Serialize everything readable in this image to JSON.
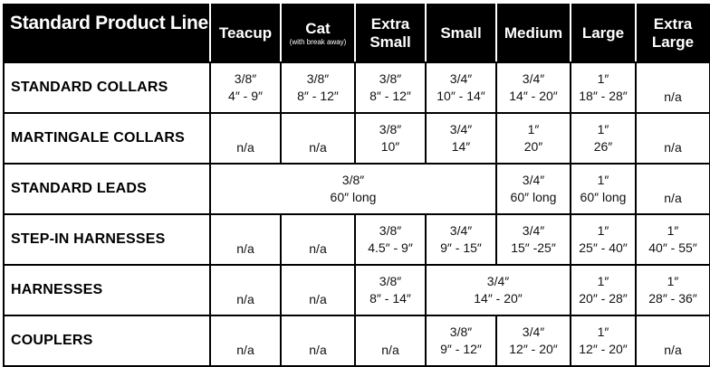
{
  "table": {
    "title": "Standard Product Line",
    "columns": [
      {
        "key": "teacup",
        "label": "Teacup",
        "note": ""
      },
      {
        "key": "cat",
        "label": "Cat",
        "note": "(with break away)"
      },
      {
        "key": "extra_small",
        "label": "Extra\nSmall",
        "note": ""
      },
      {
        "key": "small",
        "label": "Small",
        "note": ""
      },
      {
        "key": "medium",
        "label": "Medium",
        "note": ""
      },
      {
        "key": "large",
        "label": "Large",
        "note": ""
      },
      {
        "key": "extra_large",
        "label": "Extra\nLarge",
        "note": ""
      }
    ],
    "rows": [
      {
        "label": "STANDARD COLLARS",
        "cells": [
          {
            "lines": [
              "3/8″",
              "4″ - 9″"
            ],
            "span": 1
          },
          {
            "lines": [
              "3/8″",
              "8″ - 12″"
            ],
            "span": 1
          },
          {
            "lines": [
              "3/8″",
              "8″ - 12″"
            ],
            "span": 1
          },
          {
            "lines": [
              "3/4″",
              "10″ - 14″"
            ],
            "span": 1
          },
          {
            "lines": [
              "3/4″",
              "14″ - 20″"
            ],
            "span": 1
          },
          {
            "lines": [
              "1″",
              "18″ - 28″"
            ],
            "span": 1
          },
          {
            "lines": [
              "n/a"
            ],
            "span": 1,
            "na": true
          }
        ]
      },
      {
        "label": "MARTINGALE COLLARS",
        "cells": [
          {
            "lines": [
              "n/a"
            ],
            "span": 1,
            "na": true
          },
          {
            "lines": [
              "n/a"
            ],
            "span": 1,
            "na": true
          },
          {
            "lines": [
              "3/8″",
              "10″"
            ],
            "span": 1
          },
          {
            "lines": [
              "3/4″",
              "14″"
            ],
            "span": 1
          },
          {
            "lines": [
              "1″",
              "20″"
            ],
            "span": 1
          },
          {
            "lines": [
              "1″",
              "26″"
            ],
            "span": 1
          },
          {
            "lines": [
              "n/a"
            ],
            "span": 1,
            "na": true
          }
        ]
      },
      {
        "label": "STANDARD LEADS",
        "cells": [
          {
            "lines": [
              "3/8″",
              "60″ long"
            ],
            "span": 4
          },
          {
            "lines": [
              "3/4″",
              "60″ long"
            ],
            "span": 1
          },
          {
            "lines": [
              "1″",
              "60″ long"
            ],
            "span": 1
          },
          {
            "lines": [
              "n/a"
            ],
            "span": 1,
            "na": true
          }
        ]
      },
      {
        "label": "STEP-IN HARNESSES",
        "cells": [
          {
            "lines": [
              "n/a"
            ],
            "span": 1,
            "na": true
          },
          {
            "lines": [
              "n/a"
            ],
            "span": 1,
            "na": true
          },
          {
            "lines": [
              "3/8″",
              "4.5″ - 9″"
            ],
            "span": 1
          },
          {
            "lines": [
              "3/4″",
              "9″ - 15″"
            ],
            "span": 1
          },
          {
            "lines": [
              "3/4″",
              "15″ -25″"
            ],
            "span": 1
          },
          {
            "lines": [
              "1″",
              "25″ - 40″"
            ],
            "span": 1
          },
          {
            "lines": [
              "1″",
              "40″ - 55″"
            ],
            "span": 1
          }
        ]
      },
      {
        "label": "HARNESSES",
        "cells": [
          {
            "lines": [
              "n/a"
            ],
            "span": 1,
            "na": true
          },
          {
            "lines": [
              "n/a"
            ],
            "span": 1,
            "na": true
          },
          {
            "lines": [
              "3/8″",
              "8″ - 14″"
            ],
            "span": 1
          },
          {
            "lines": [
              "3/4″",
              "14″ - 20″"
            ],
            "span": 2
          },
          {
            "lines": [
              "1″",
              "20″ - 28″"
            ],
            "span": 1
          },
          {
            "lines": [
              "1″",
              "28″ - 36″"
            ],
            "span": 1
          }
        ]
      },
      {
        "label": "COUPLERS",
        "cells": [
          {
            "lines": [
              "n/a"
            ],
            "span": 1,
            "na": true
          },
          {
            "lines": [
              "n/a"
            ],
            "span": 1,
            "na": true
          },
          {
            "lines": [
              "n/a"
            ],
            "span": 1,
            "na": true
          },
          {
            "lines": [
              "3/8″",
              "9″ - 12″"
            ],
            "span": 1
          },
          {
            "lines": [
              "3/4″",
              "12″ - 20″"
            ],
            "span": 1
          },
          {
            "lines": [
              "1″",
              "12″ - 20″"
            ],
            "span": 1
          },
          {
            "lines": [
              "n/a"
            ],
            "span": 1,
            "na": true
          }
        ]
      }
    ]
  }
}
